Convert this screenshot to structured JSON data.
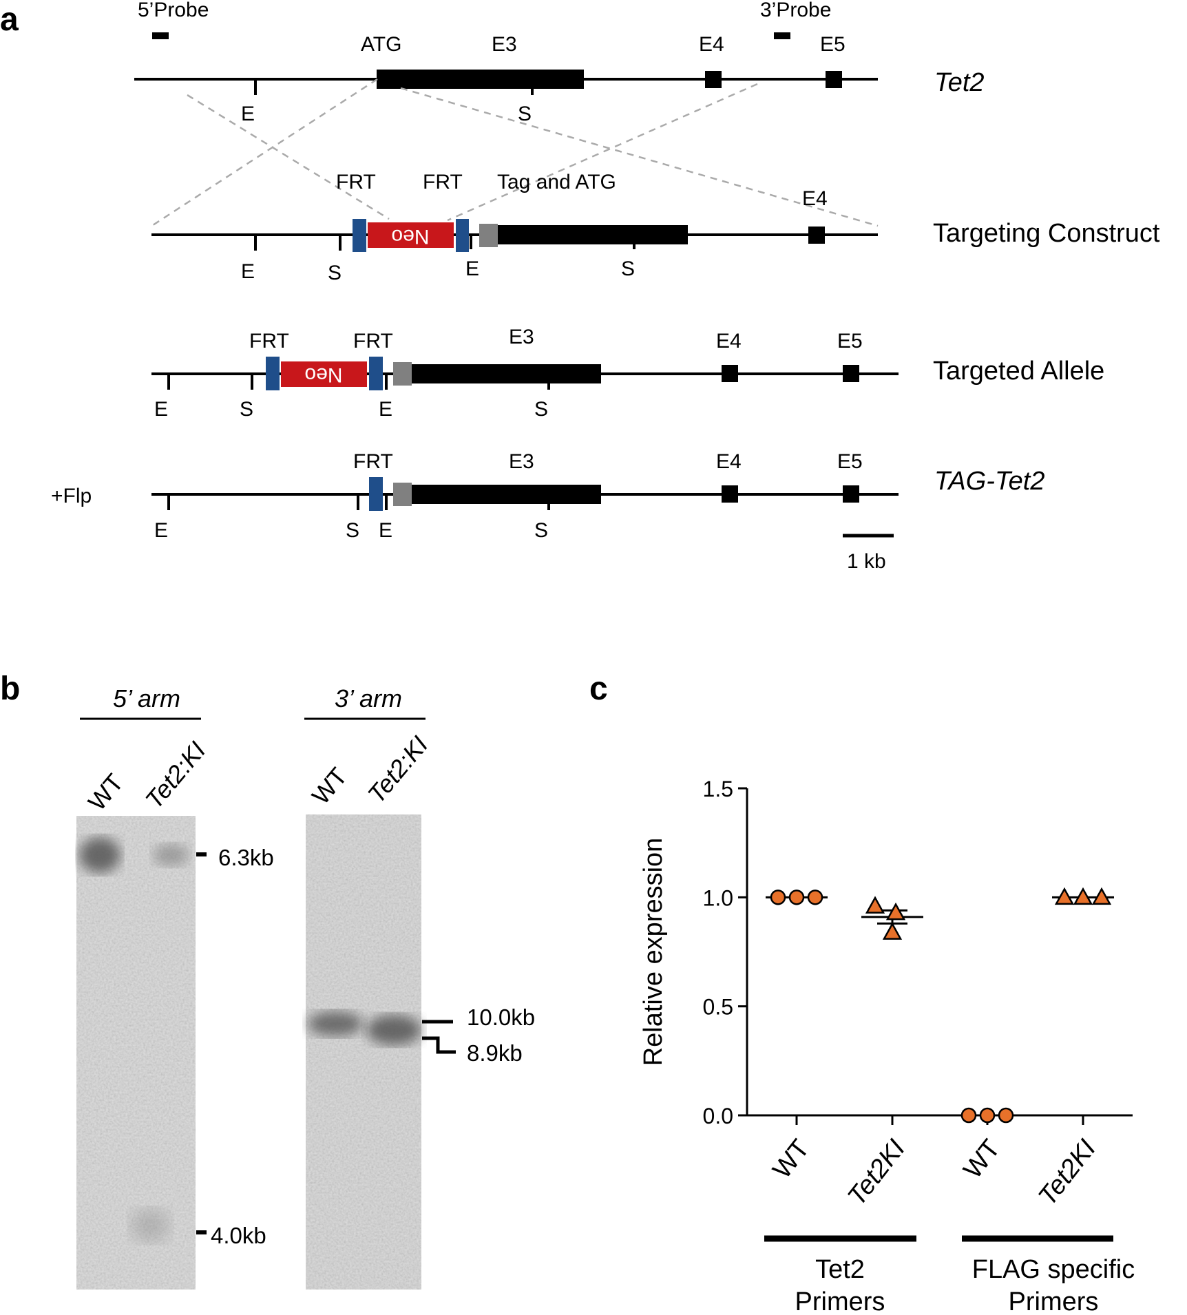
{
  "panel_a": {
    "label": "a",
    "probe_5": "5’Probe",
    "probe_3": "3’Probe",
    "flp": "+Flp",
    "scale_bar_label": "1 kb",
    "tet2_row": {
      "name": "Tet2",
      "atg": "ATG",
      "e3": "E3",
      "e4": "E4",
      "e5": "E5",
      "site_e": "E",
      "site_s": "S"
    },
    "construct_row": {
      "name": "Targeting Construct",
      "frt1": "FRT",
      "frt2": "FRT",
      "tag_atg": "Tag and ATG",
      "e4": "E4",
      "neo": "Neo",
      "site_e1": "E",
      "site_s1": "S",
      "site_e2": "E",
      "site_s2": "S"
    },
    "allele_row": {
      "name": "Targeted Allele",
      "frt1": "FRT",
      "frt2": "FRT",
      "e3": "E3",
      "e4": "E4",
      "e5": "E5",
      "neo": "Neo",
      "site_e1": "E",
      "site_s1": "S",
      "site_e2": "E",
      "site_s2": "S"
    },
    "tag_row": {
      "name": "TAG-Tet2",
      "frt": "FRT",
      "e3": "E3",
      "e4": "E4",
      "e5": "E5",
      "site_e1": "E",
      "site_s1": "S",
      "site_e2": "E",
      "site_s2": "S"
    }
  },
  "panel_b": {
    "label": "b",
    "arm5": {
      "title": "5’ arm",
      "lane_wt": "WT",
      "lane_ki": "Tet2:KI",
      "marker_top": "6.3kb",
      "marker_bottom": "4.0kb"
    },
    "arm3": {
      "title": "3’ arm",
      "lane_wt": "WT",
      "lane_ki": "Tet2:KI",
      "marker_top": "10.0kb",
      "marker_bottom": "8.9kb"
    }
  },
  "panel_c": {
    "label": "c",
    "group1_line1": "Tet2",
    "group1_line2": "Primers",
    "group2_line1": "FLAG specific",
    "group2_line2": "Primers"
  },
  "chart_data": {
    "type": "scatter",
    "ylabel": "Relative expression",
    "ylim": [
      0,
      1.5
    ],
    "yticks": [
      0.0,
      0.5,
      1.0,
      1.5
    ],
    "ytick_labels": [
      "0.0",
      "0.5",
      "1.0",
      "1.5"
    ],
    "categories": [
      "WT",
      "Tet2KI",
      "WT",
      "Tet2KI"
    ],
    "groups": [
      {
        "name": "Tet2 Primers",
        "categories": [
          0,
          1
        ]
      },
      {
        "name": "FLAG specific Primers",
        "categories": [
          2,
          3
        ]
      }
    ],
    "points": [
      {
        "category": 0,
        "marker": "circle",
        "values": [
          1.0,
          1.0,
          1.0
        ],
        "mean": 1.0,
        "sem": 0.0
      },
      {
        "category": 1,
        "marker": "triangle",
        "values": [
          0.96,
          0.93,
          0.84
        ],
        "mean": 0.91,
        "sem": 0.03
      },
      {
        "category": 2,
        "marker": "circle",
        "values": [
          0.0,
          0.0,
          0.0
        ],
        "mean": 0.0,
        "sem": 0.0
      },
      {
        "category": 3,
        "marker": "triangle",
        "values": [
          1.0,
          1.0,
          1.0
        ],
        "mean": 1.0,
        "sem": 0.0
      }
    ],
    "marker_color": "#e8712a",
    "grid": false,
    "legend": "none"
  },
  "colors": {
    "neo": "#c8171b",
    "frt": "#1f4e8a",
    "tag": "#808080",
    "exon": "#000000",
    "arm_line": "#aaaaaa",
    "marker": "#e8712a",
    "blot_bg": "#d8d8d8"
  }
}
